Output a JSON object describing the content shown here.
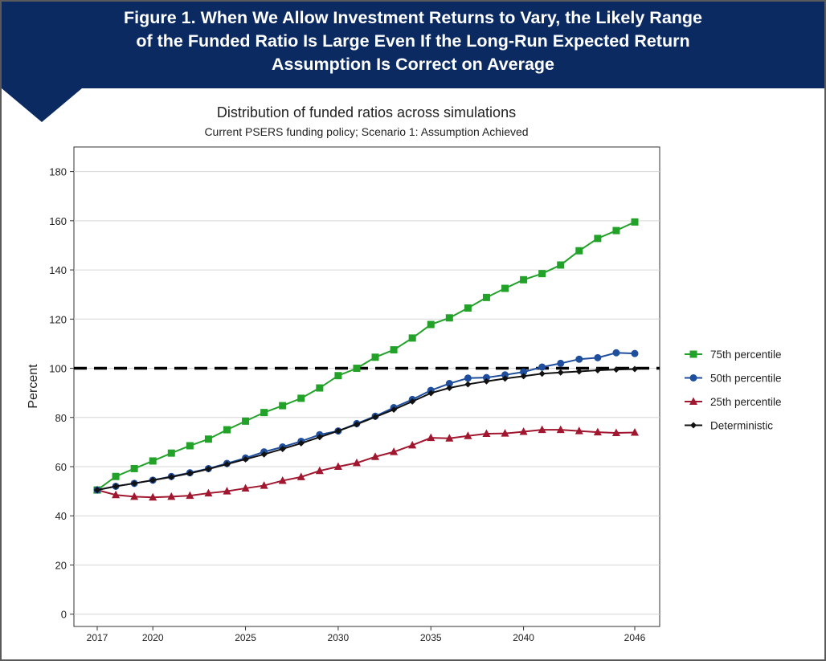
{
  "figure": {
    "title_lines": [
      "Figure 1. When We Allow Investment Returns to Vary, the Likely Range",
      "of the Funded Ratio Is Large Even If the Long-Run Expected Return",
      "Assumption Is Correct on Average"
    ],
    "banner_color": "#0b2a62"
  },
  "chart_data": {
    "type": "line",
    "title": "Distribution of funded ratios across simulations",
    "subtitle": "Current PSERS funding policy; Scenario 1: Assumption Achieved",
    "xlabel": "",
    "ylabel": "Percent",
    "xlim": [
      2017,
      2046
    ],
    "ylim": [
      -5,
      190
    ],
    "x_ticks": [
      2017,
      2020,
      2025,
      2030,
      2035,
      2040,
      2046
    ],
    "y_ticks": [
      0,
      20,
      40,
      60,
      80,
      100,
      120,
      140,
      160,
      180
    ],
    "grid": "horizontal",
    "legend_position": "right",
    "reference_line": {
      "y": 100,
      "style": "dashed",
      "color": "#000000"
    },
    "x": [
      2017,
      2018,
      2019,
      2020,
      2021,
      2022,
      2023,
      2024,
      2025,
      2026,
      2027,
      2028,
      2029,
      2030,
      2031,
      2032,
      2033,
      2034,
      2035,
      2036,
      2037,
      2038,
      2039,
      2040,
      2041,
      2042,
      2043,
      2044,
      2045,
      2046
    ],
    "series": [
      {
        "name": "75th percentile",
        "color": "#23a22a",
        "marker": "square",
        "values": [
          50.5,
          56,
          59.2,
          62.3,
          65.5,
          68.5,
          71.2,
          75,
          78.5,
          82,
          84.8,
          87.8,
          92,
          97,
          100,
          104.5,
          107.5,
          112.3,
          117.8,
          120.5,
          124.5,
          128.8,
          132.5,
          136,
          138.5,
          142,
          147.8,
          152.8,
          156,
          159.5
        ]
      },
      {
        "name": "50th percentile",
        "color": "#1f4e9c",
        "marker": "circle",
        "values": [
          50.5,
          52,
          53.2,
          54.5,
          56,
          57.5,
          59.2,
          61.3,
          63.5,
          66,
          68,
          70.3,
          73,
          74.5,
          77.5,
          80.5,
          84,
          87.3,
          91,
          93.8,
          96,
          96.2,
          97.3,
          98.5,
          100.5,
          102,
          103.7,
          104.3,
          106.3,
          106
        ]
      },
      {
        "name": "25th percentile",
        "color": "#a1172f",
        "marker": "triangle",
        "values": [
          50.5,
          48.5,
          47.8,
          47.5,
          47.8,
          48.2,
          49.2,
          50,
          51.2,
          52.3,
          54.3,
          55.8,
          58.3,
          60,
          61.5,
          64,
          66,
          68.7,
          71.7,
          71.5,
          72.5,
          73.4,
          73.5,
          74.2,
          75,
          75,
          74.5,
          74,
          73.7,
          73.9
        ]
      },
      {
        "name": "Deterministic",
        "color": "#111111",
        "marker": "diamond",
        "values": [
          50.5,
          52,
          53.2,
          54.5,
          55.8,
          57.3,
          59,
          61,
          63,
          65,
          67.2,
          69.5,
          72,
          74.5,
          77.2,
          80.2,
          83.2,
          86.5,
          89.9,
          92,
          93.5,
          94.7,
          95.8,
          96.8,
          97.8,
          98.3,
          98.7,
          99.2,
          99.5,
          99.7
        ]
      }
    ]
  }
}
